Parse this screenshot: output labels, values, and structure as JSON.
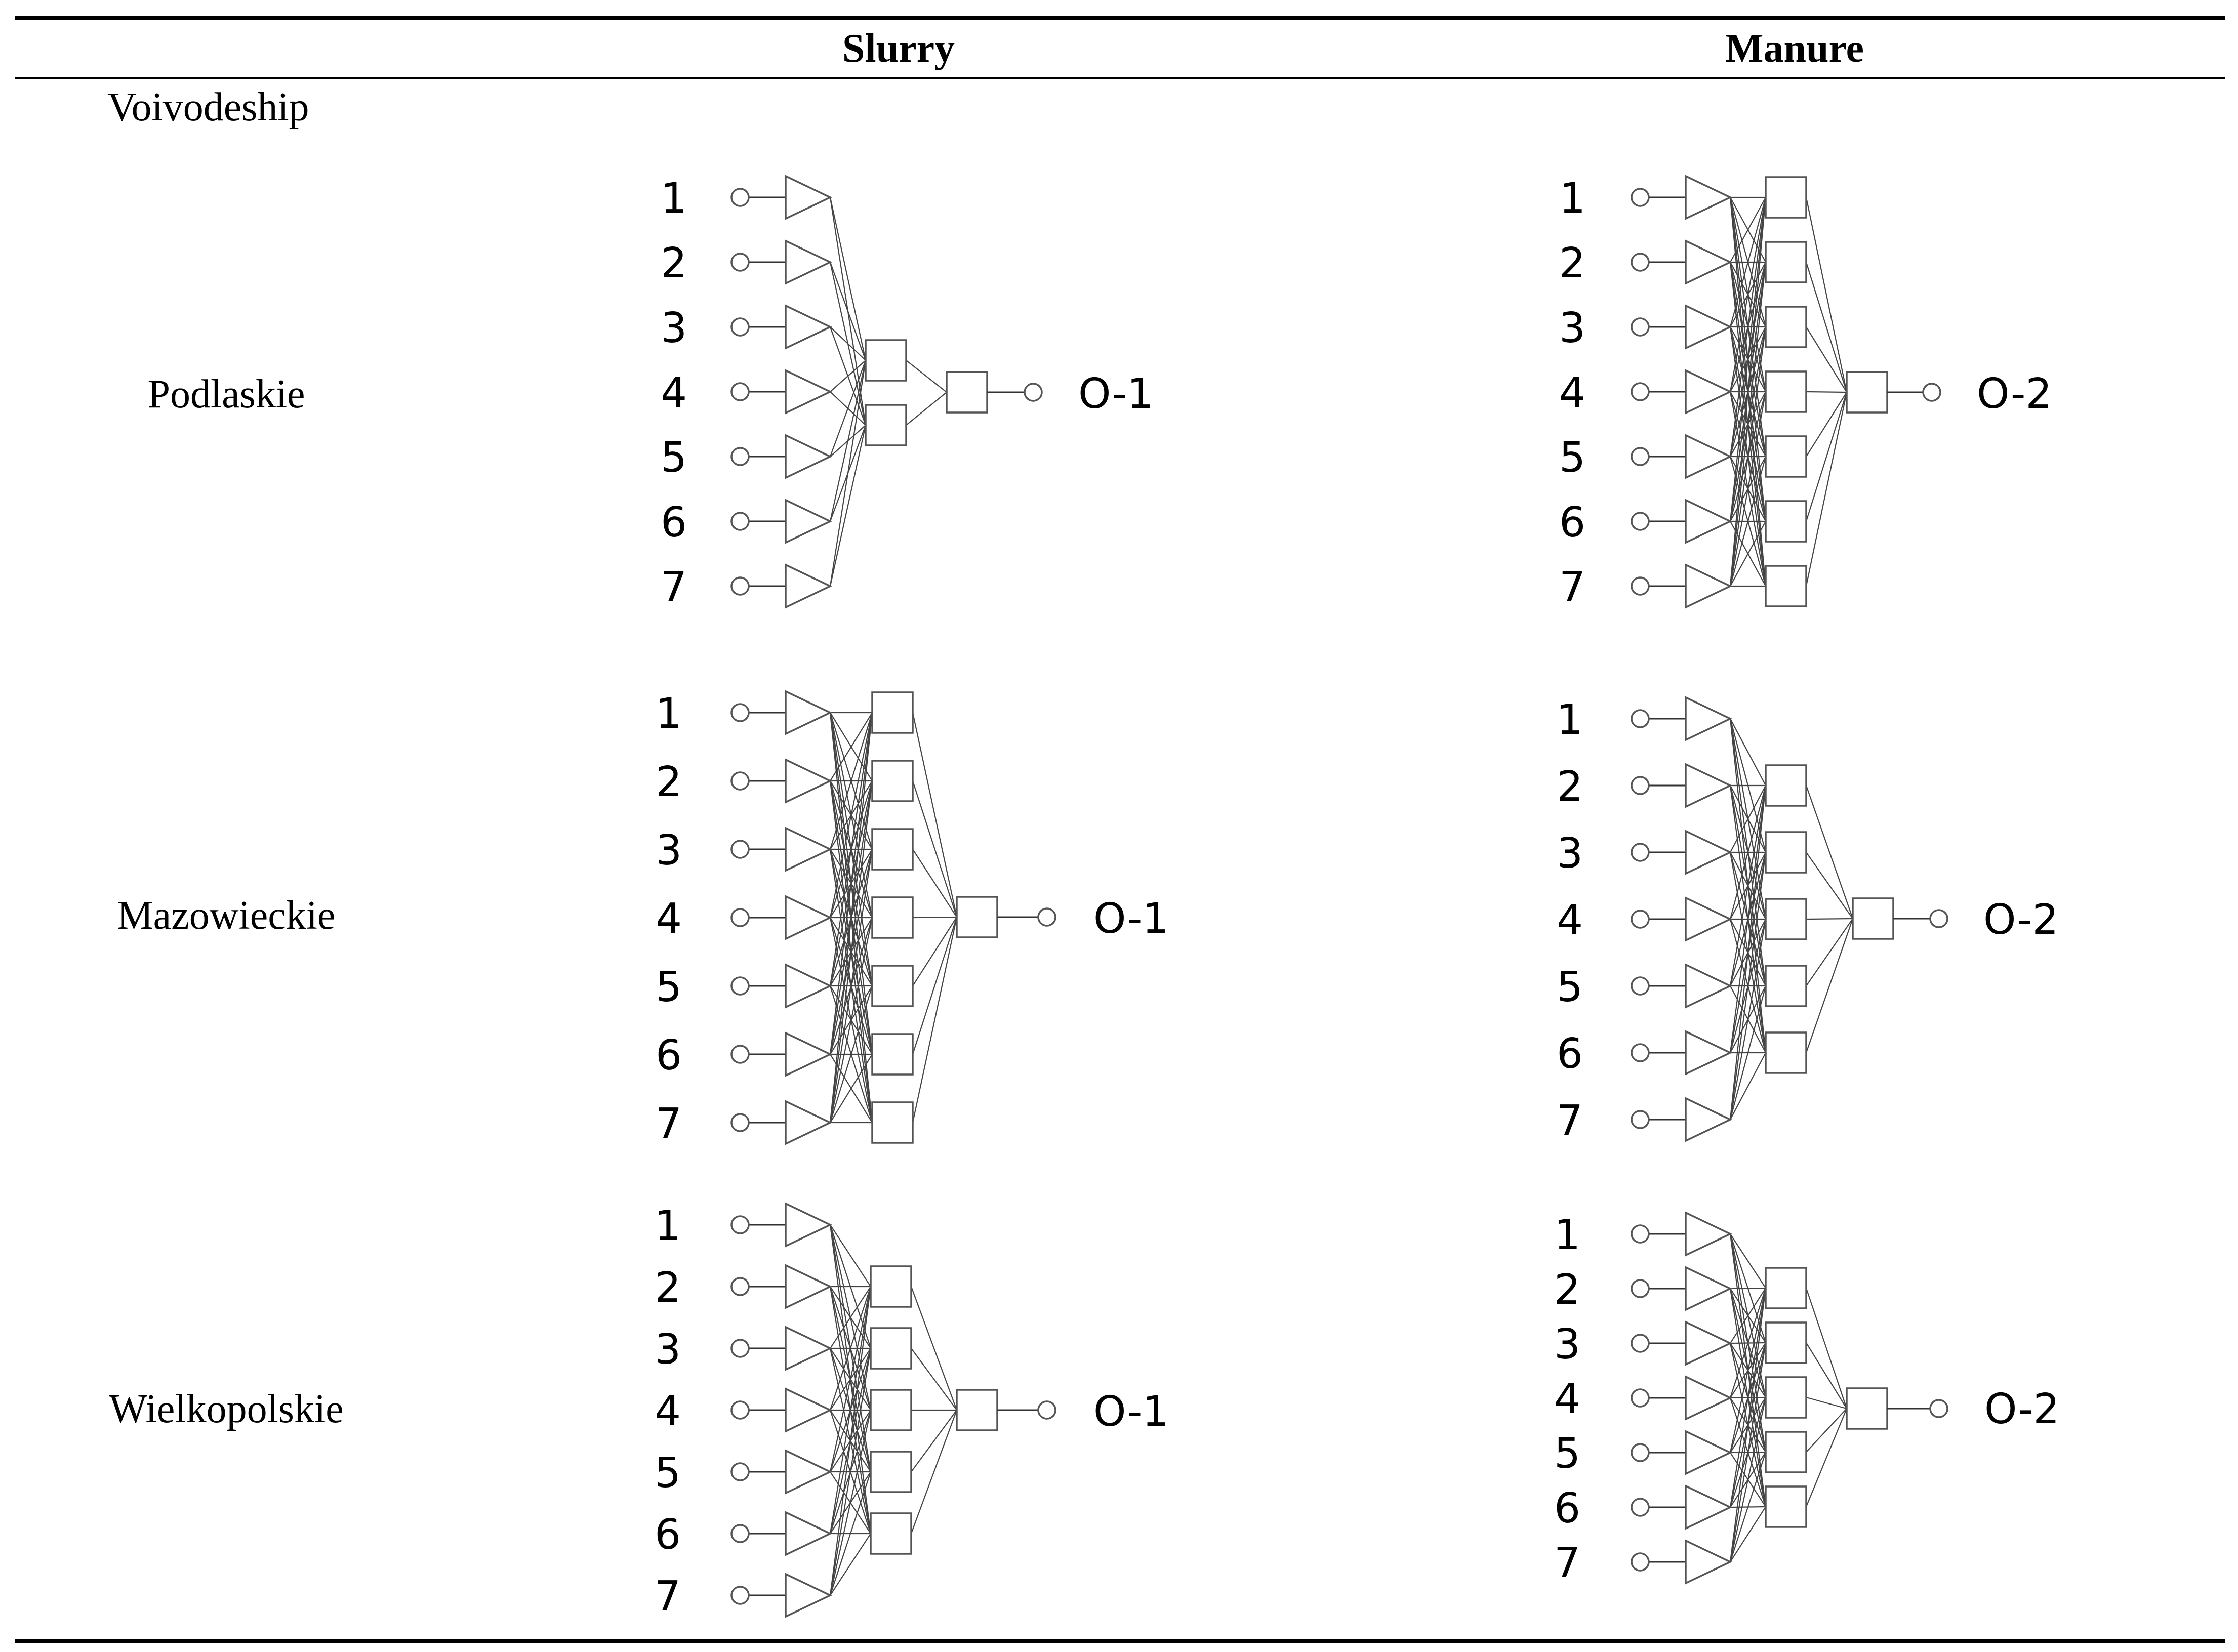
{
  "table": {
    "columns": [
      "Slurry",
      "Manure"
    ],
    "row_header": "Voivodeship",
    "rows": [
      "Podlaskie",
      "Mazowieckie",
      "Wielkopolskie"
    ]
  },
  "networks": [
    {
      "id": "podlaskie-slurry",
      "region": "Podlaskie",
      "material": "Slurry",
      "inputs": [
        "1",
        "2",
        "3",
        "4",
        "5",
        "6",
        "7"
      ],
      "hidden_neurons": 2,
      "output": "O-1"
    },
    {
      "id": "podlaskie-manure",
      "region": "Podlaskie",
      "material": "Manure",
      "inputs": [
        "1",
        "2",
        "3",
        "4",
        "5",
        "6",
        "7"
      ],
      "hidden_neurons": 7,
      "output": "O-2"
    },
    {
      "id": "mazowieckie-slurry",
      "region": "Mazowieckie",
      "material": "Slurry",
      "inputs": [
        "1",
        "2",
        "3",
        "4",
        "5",
        "6",
        "7"
      ],
      "hidden_neurons": 7,
      "output": "O-1"
    },
    {
      "id": "mazowieckie-manure",
      "region": "Mazowieckie",
      "material": "Manure",
      "inputs": [
        "1",
        "2",
        "3",
        "4",
        "5",
        "6",
        "7"
      ],
      "hidden_neurons": 5,
      "output": "O-2"
    },
    {
      "id": "wielkopolskie-slurry",
      "region": "Wielkopolskie",
      "material": "Slurry",
      "inputs": [
        "1",
        "2",
        "3",
        "4",
        "5",
        "6",
        "7"
      ],
      "hidden_neurons": 5,
      "output": "O-1"
    },
    {
      "id": "wielkopolskie-manure",
      "region": "Wielkopolskie",
      "material": "Manure",
      "inputs": [
        "1",
        "2",
        "3",
        "4",
        "5",
        "6",
        "7"
      ],
      "hidden_neurons": 5,
      "output": "O-2"
    }
  ]
}
